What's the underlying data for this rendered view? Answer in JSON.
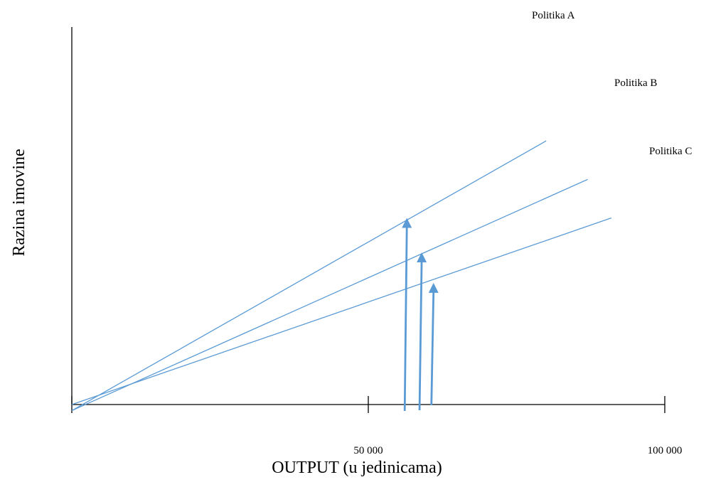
{
  "chart_data": {
    "type": "line",
    "title": "",
    "xlabel": "OUTPUT (u jedinicama)",
    "ylabel": "Razina imovine",
    "xlim": [
      0,
      100000
    ],
    "x_ticks": [
      {
        "value": 50000,
        "label": "50 000"
      },
      {
        "value": 100000,
        "label": "100 000"
      }
    ],
    "grid": false,
    "series": [
      {
        "name": "Politika A",
        "x": [
          0,
          80000
        ],
        "y": [
          -3,
          130
        ]
      },
      {
        "name": "Politika B",
        "x": [
          0,
          87000
        ],
        "y": [
          -3,
          111
        ]
      },
      {
        "name": "Politika C",
        "x": [
          0,
          91000
        ],
        "y": [
          0,
          92
        ]
      }
    ],
    "arrows": [
      {
        "x": 56500,
        "y_end": 92
      },
      {
        "x": 59000,
        "y_end": 75
      },
      {
        "x": 61000,
        "y_end": 60
      }
    ],
    "colors": {
      "line": "#5b9bd5",
      "arrow": "#5b9bd5",
      "axis": "#000000"
    }
  }
}
